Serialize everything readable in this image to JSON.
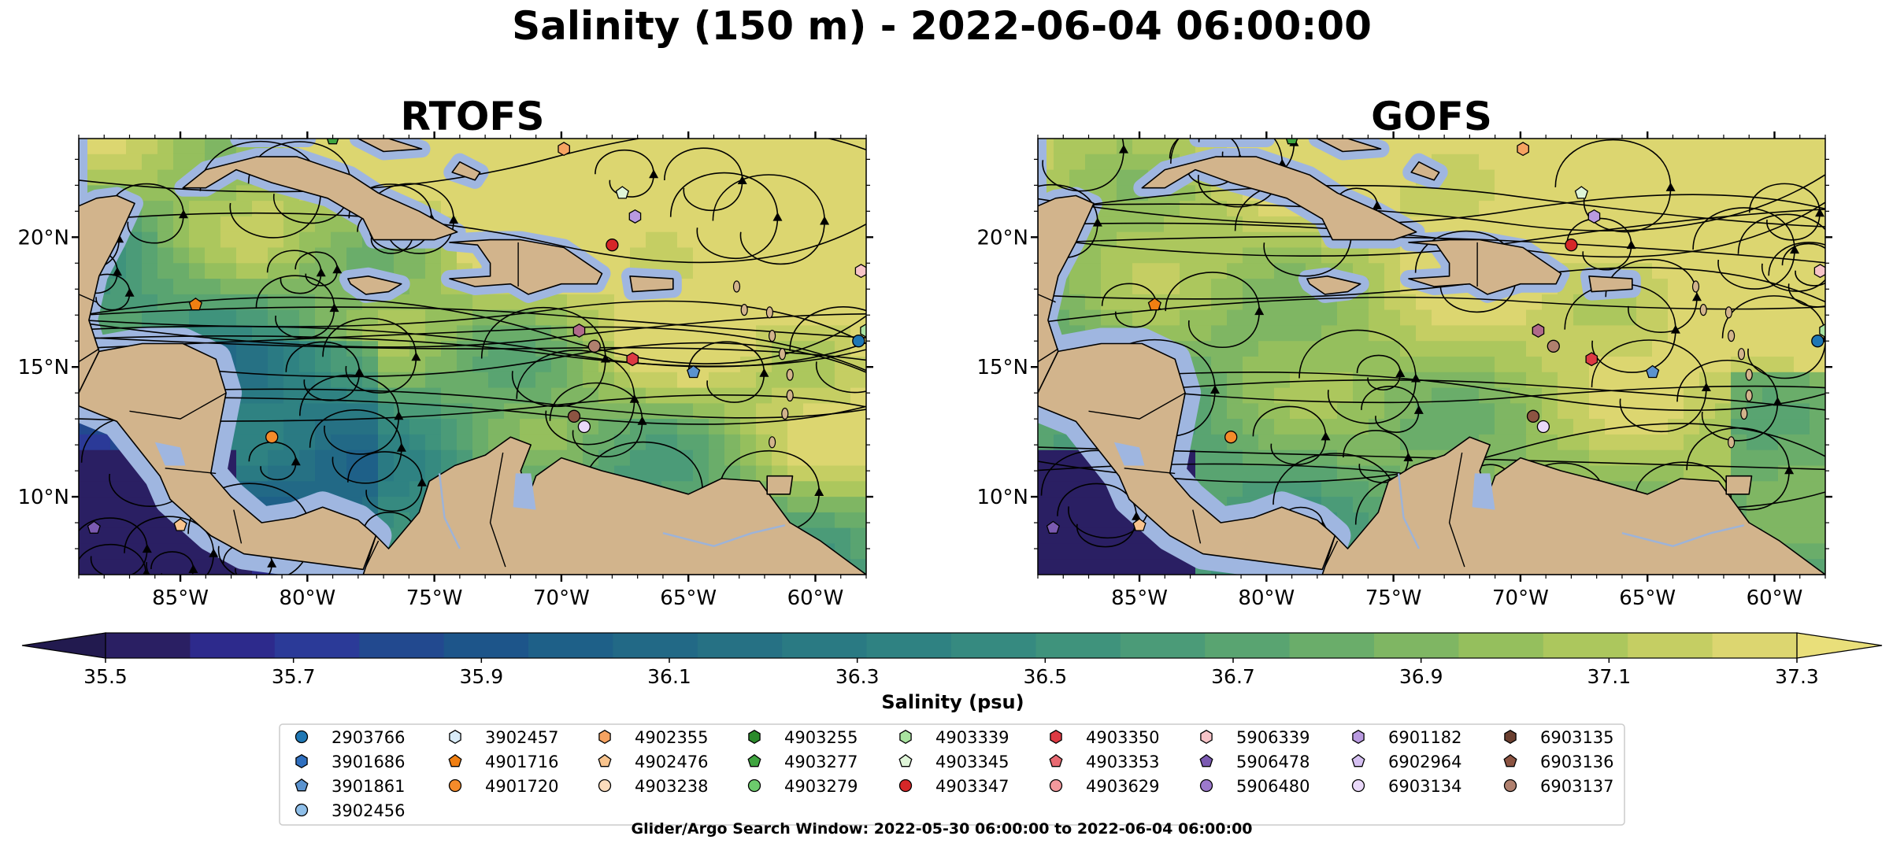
{
  "figure": {
    "title": "Salinity (150 m) - 2022-06-04 06:00:00",
    "footer": "Glider/Argo Search Window: 2022-05-30 06:00:00 to 2022-06-04 06:00:00"
  },
  "panels": [
    {
      "id": "rtofs",
      "title": "RTOFS"
    },
    {
      "id": "gofs",
      "title": "GOFS"
    }
  ],
  "axes": {
    "lon_ticks": [
      "85°W",
      "80°W",
      "75°W",
      "70°W",
      "65°W",
      "60°W"
    ],
    "lon_values": [
      -85,
      -80,
      -75,
      -70,
      -65,
      -60
    ],
    "lat_ticks": [
      "20°N",
      "15°N",
      "10°N"
    ],
    "lat_values": [
      20,
      15,
      10
    ],
    "lon_range": [
      -89,
      -58
    ],
    "lat_range": [
      7,
      23.8
    ]
  },
  "colorbar": {
    "label": "Salinity (psu)",
    "ticks": [
      "35.5",
      "35.7",
      "35.9",
      "36.1",
      "36.3",
      "36.5",
      "36.7",
      "36.9",
      "37.1",
      "37.3"
    ],
    "range": [
      35.5,
      37.3
    ],
    "extend": "both",
    "colormap": "haline",
    "colors": [
      "#2a1f63",
      "#2d2a8c",
      "#2b3a98",
      "#22498f",
      "#1d558a",
      "#1e6088",
      "#226986",
      "#267184",
      "#2a7a83",
      "#2f8282",
      "#368a80",
      "#3f937c",
      "#4b9b78",
      "#59a471",
      "#6aad6a",
      "#7fb663",
      "#95bf5d",
      "#acc75d",
      "#c5ce63",
      "#dcd670"
    ],
    "extend_min_color": "#221a4f",
    "extend_max_color": "#e9df7a"
  },
  "map_colors": {
    "land": "#d2b48c",
    "shallow": "#9fb6e0",
    "coast": "#000000",
    "river": "#9db3d8"
  },
  "legend": {
    "columns": [
      [
        {
          "id": "2903766",
          "marker": "circle",
          "color": "#1f77b4"
        },
        {
          "id": "3901686",
          "marker": "hexagon",
          "color": "#2f6fbf"
        },
        {
          "id": "3901861",
          "marker": "pentagon",
          "color": "#5b93cf"
        },
        {
          "id": "3902456",
          "marker": "circle",
          "color": "#8fbfe9"
        }
      ],
      [
        {
          "id": "3902457",
          "marker": "hexagon",
          "color": "#d9ecf9"
        },
        {
          "id": "4901716",
          "marker": "pentagon",
          "color": "#f07f12"
        },
        {
          "id": "4901720",
          "marker": "circle",
          "color": "#f58b2a"
        }
      ],
      [
        {
          "id": "4902355",
          "marker": "hexagon",
          "color": "#f6a361"
        },
        {
          "id": "4902476",
          "marker": "pentagon",
          "color": "#f8c48e"
        },
        {
          "id": "4903238",
          "marker": "circle",
          "color": "#fcdcbc"
        }
      ],
      [
        {
          "id": "4903255",
          "marker": "hexagon",
          "color": "#2b8a2b"
        },
        {
          "id": "4903277",
          "marker": "pentagon",
          "color": "#3fa53f"
        },
        {
          "id": "4903279",
          "marker": "circle",
          "color": "#6ccb6c"
        }
      ],
      [
        {
          "id": "4903339",
          "marker": "hexagon",
          "color": "#a9e3a0"
        },
        {
          "id": "4903345",
          "marker": "pentagon",
          "color": "#dff5d8"
        },
        {
          "id": "4903347",
          "marker": "circle",
          "color": "#d62728"
        }
      ],
      [
        {
          "id": "4903350",
          "marker": "hexagon",
          "color": "#dd3a43"
        },
        {
          "id": "4903353",
          "marker": "pentagon",
          "color": "#e86a72"
        },
        {
          "id": "4903629",
          "marker": "circle",
          "color": "#f2999d"
        }
      ],
      [
        {
          "id": "5906339",
          "marker": "hexagon",
          "color": "#f7c4c8"
        },
        {
          "id": "5906478",
          "marker": "pentagon",
          "color": "#7b5ab1"
        },
        {
          "id": "5906480",
          "marker": "circle",
          "color": "#9c79cc"
        }
      ],
      [
        {
          "id": "6901182",
          "marker": "hexagon",
          "color": "#b99ae0"
        },
        {
          "id": "6902964",
          "marker": "pentagon",
          "color": "#d5c0f1"
        },
        {
          "id": "6903134",
          "marker": "circle",
          "color": "#ead9fa"
        }
      ],
      [
        {
          "id": "6903135",
          "marker": "hexagon",
          "color": "#6b3f30"
        },
        {
          "id": "6903136",
          "marker": "pentagon",
          "color": "#8c5442"
        },
        {
          "id": "6903137",
          "marker": "circle",
          "color": "#b0806e"
        }
      ]
    ]
  },
  "floats": [
    {
      "lon": -84.4,
      "lat": 17.4,
      "marker": "pentagon",
      "color": "#f07f12"
    },
    {
      "lon": -81.4,
      "lat": 12.3,
      "marker": "circle",
      "color": "#f58b2a"
    },
    {
      "lon": -88.4,
      "lat": 8.8,
      "marker": "pentagon",
      "color": "#7b5ab1"
    },
    {
      "lon": -85.0,
      "lat": 8.9,
      "marker": "pentagon",
      "color": "#f8c48e"
    },
    {
      "lon": -69.9,
      "lat": 23.4,
      "marker": "hexagon",
      "color": "#f6a361"
    },
    {
      "lon": -67.6,
      "lat": 21.7,
      "marker": "pentagon",
      "color": "#dff5d8"
    },
    {
      "lon": -67.1,
      "lat": 20.8,
      "marker": "hexagon",
      "color": "#b99ae0"
    },
    {
      "lon": -68.0,
      "lat": 19.7,
      "marker": "circle",
      "color": "#d62728"
    },
    {
      "lon": -69.3,
      "lat": 16.4,
      "marker": "hexagon",
      "color": "#b06a8a"
    },
    {
      "lon": -68.7,
      "lat": 15.8,
      "marker": "circle",
      "color": "#b0806e"
    },
    {
      "lon": -67.2,
      "lat": 15.3,
      "marker": "hexagon",
      "color": "#dd3a43"
    },
    {
      "lon": -69.5,
      "lat": 13.1,
      "marker": "circle",
      "color": "#8c5442"
    },
    {
      "lon": -69.1,
      "lat": 12.7,
      "marker": "circle",
      "color": "#ead9fa"
    },
    {
      "lon": -64.8,
      "lat": 14.8,
      "marker": "pentagon",
      "color": "#5b93cf"
    },
    {
      "lon": -58.0,
      "lat": 16.4,
      "marker": "hexagon",
      "color": "#a9e3a0"
    },
    {
      "lon": -58.3,
      "lat": 16.0,
      "marker": "circle",
      "color": "#1f77b4"
    },
    {
      "lon": -58.2,
      "lat": 18.7,
      "marker": "hexagon",
      "color": "#f7c4c8"
    },
    {
      "lon": -79.0,
      "lat": 23.8,
      "marker": "pentagon",
      "color": "#3fa53f"
    }
  ]
}
